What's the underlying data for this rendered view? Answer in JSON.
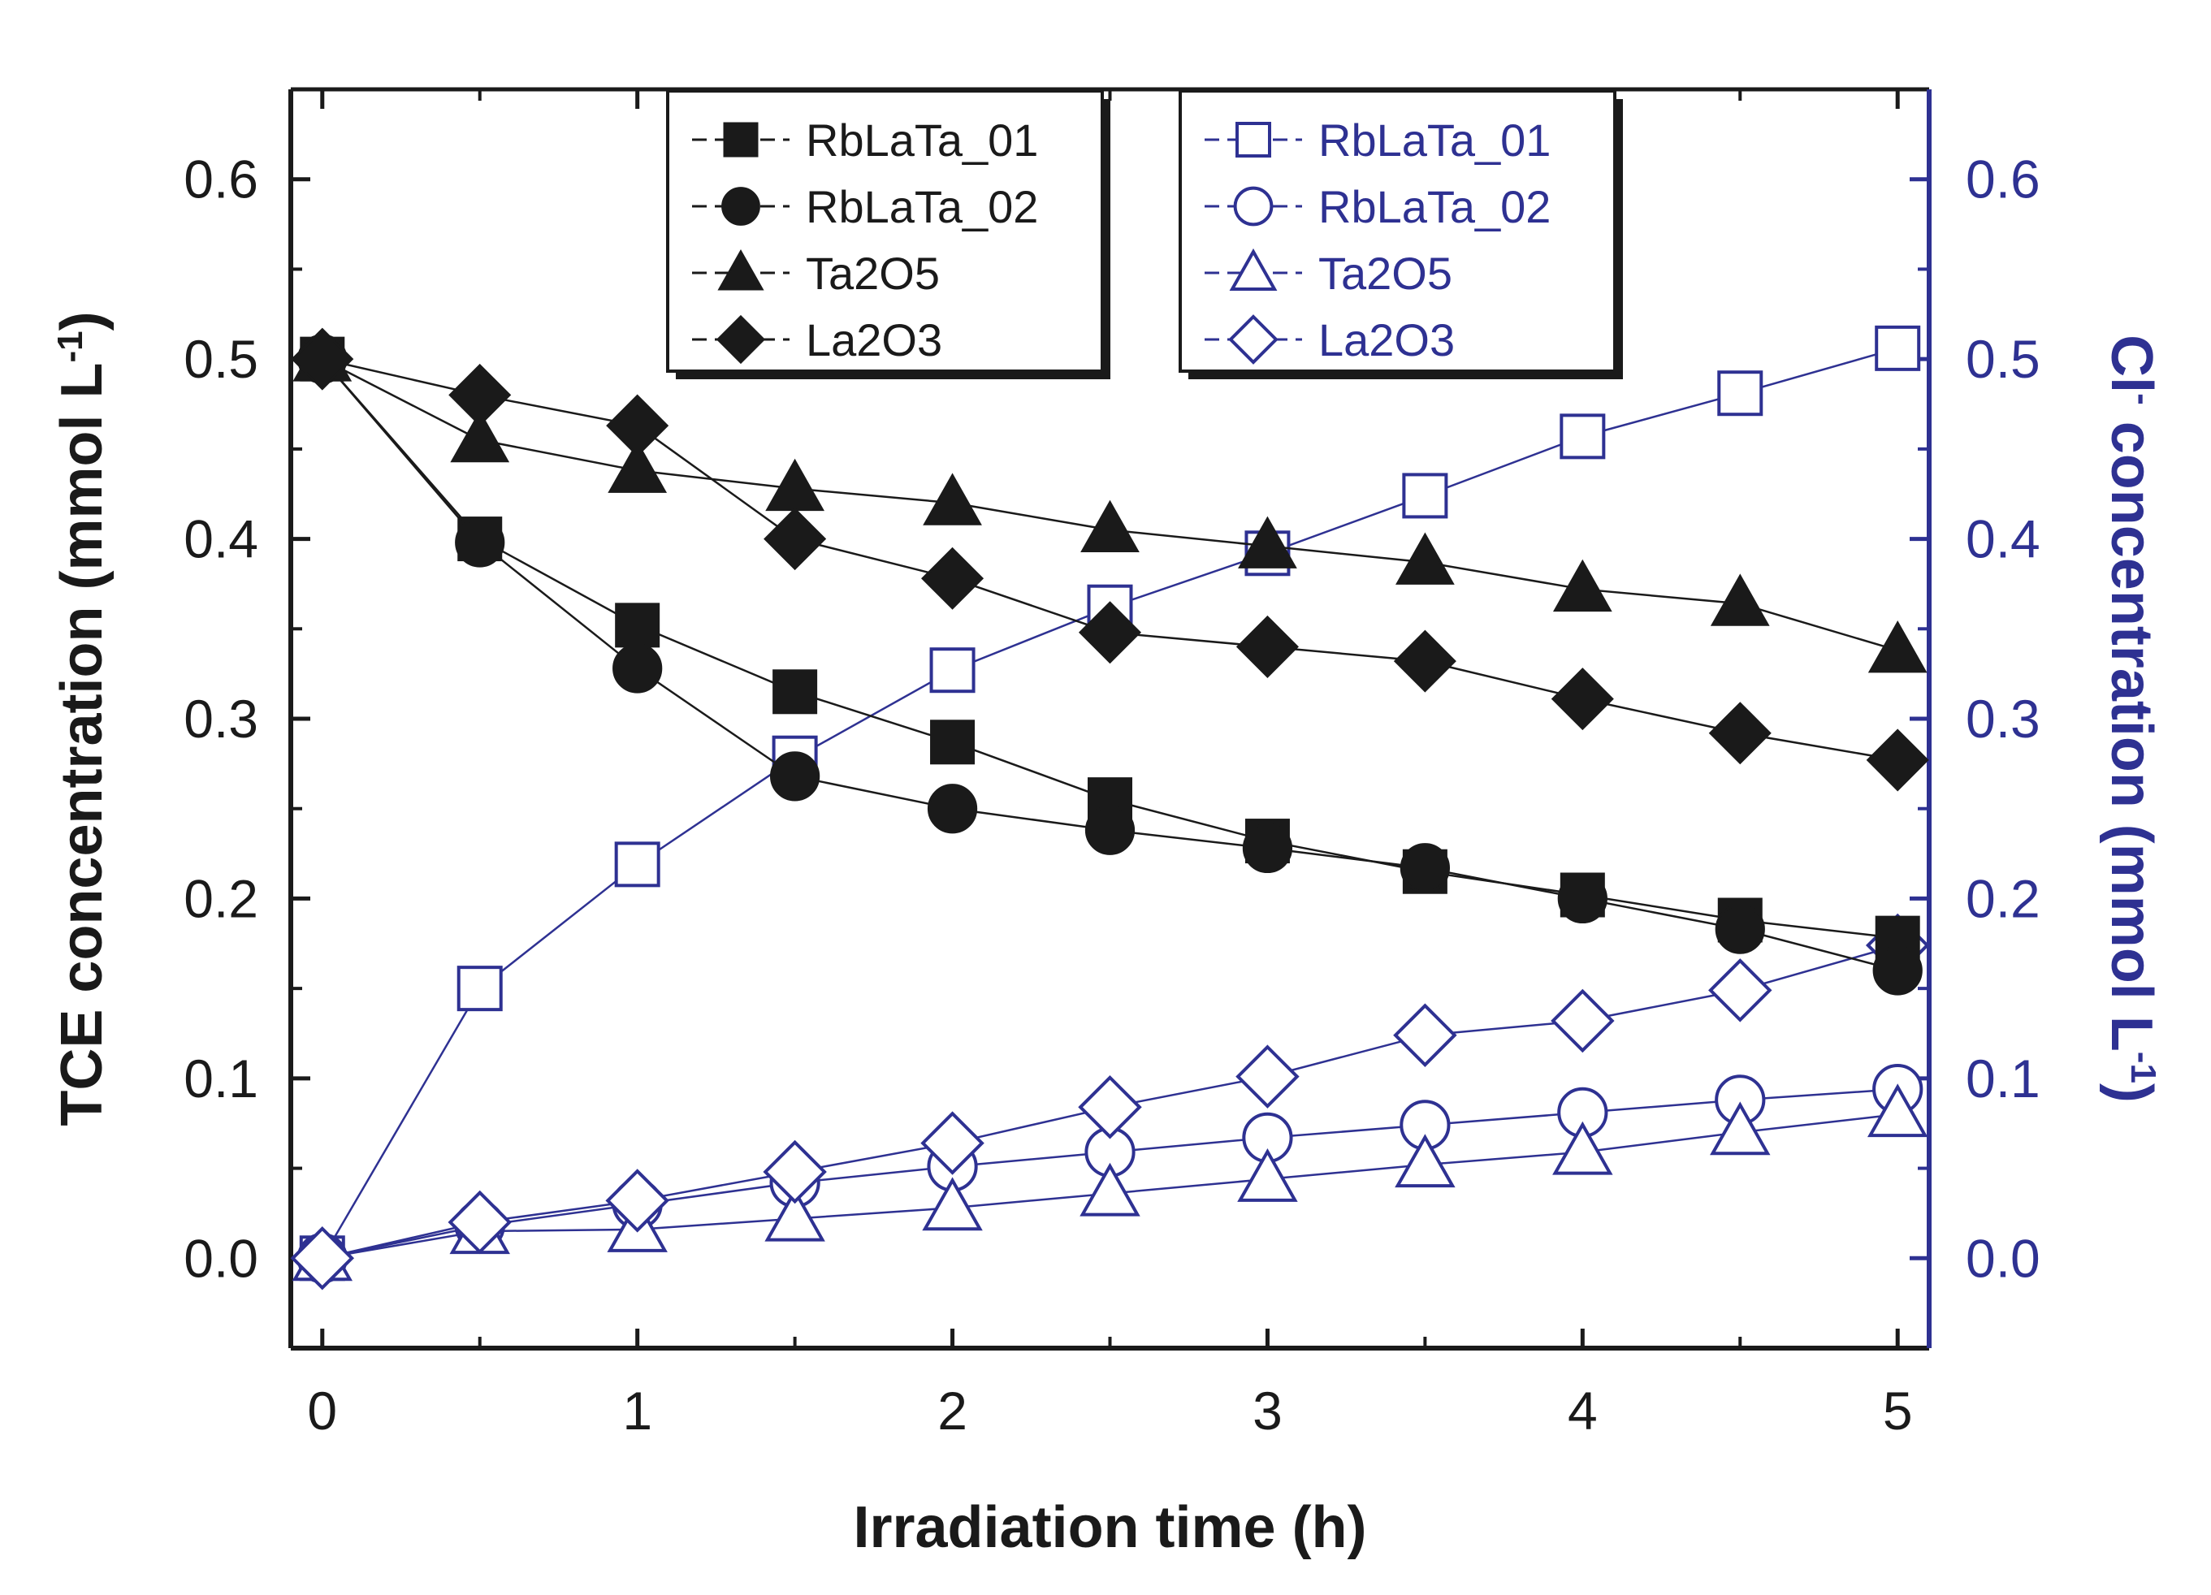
{
  "chart_data": {
    "type": "line",
    "x": [
      0,
      0.5,
      1,
      1.5,
      2,
      2.5,
      3,
      3.5,
      4,
      4.5,
      5
    ],
    "xlabel": "Irradiation time (h)",
    "xlim": [
      -0.1,
      5.1
    ],
    "xticks": [
      "0",
      "1",
      "2",
      "3",
      "4",
      "5"
    ],
    "left_axis": {
      "label_main": "TCE concentration (mmol L",
      "label_sup": "-1",
      "label_close": ")",
      "ylim": [
        -0.05,
        0.65
      ],
      "ticks": [
        "0.0",
        "0.1",
        "0.2",
        "0.3",
        "0.4",
        "0.5",
        "0.6"
      ],
      "color": "#1a1a1a"
    },
    "right_axis": {
      "label_main": "Cl",
      "label_sup1": "-",
      "label_mid": " concentration (mmol L",
      "label_sup2": "-1",
      "label_close": ")",
      "ylim": [
        -0.05,
        0.65
      ],
      "ticks": [
        "0.0",
        "0.1",
        "0.2",
        "0.3",
        "0.4",
        "0.5",
        "0.6"
      ],
      "color": "#2e3192"
    },
    "series_tce": [
      {
        "name": "RbLaTa_01",
        "marker": "square",
        "values": [
          0.5,
          0.4,
          0.352,
          0.315,
          0.287,
          0.255,
          0.232,
          0.215,
          0.202,
          0.188,
          0.178
        ]
      },
      {
        "name": "RbLaTa_02",
        "marker": "circle",
        "values": [
          0.5,
          0.398,
          0.328,
          0.268,
          0.25,
          0.238,
          0.228,
          0.217,
          0.2,
          0.183,
          0.16
        ]
      },
      {
        "name": "Ta2O5",
        "marker": "triangle",
        "values": [
          0.5,
          0.455,
          0.438,
          0.428,
          0.42,
          0.405,
          0.396,
          0.387,
          0.372,
          0.364,
          0.338
        ]
      },
      {
        "name": "La2O3",
        "marker": "diamond",
        "values": [
          0.5,
          0.48,
          0.463,
          0.4,
          0.378,
          0.348,
          0.34,
          0.332,
          0.311,
          0.292,
          0.277
        ]
      }
    ],
    "series_cl": [
      {
        "name": "RbLaTa_01",
        "marker": "square",
        "values": [
          0.0,
          0.15,
          0.219,
          0.278,
          0.327,
          0.362,
          0.392,
          0.424,
          0.457,
          0.481,
          0.506
        ]
      },
      {
        "name": "RbLaTa_02",
        "marker": "circle",
        "values": [
          0.0,
          0.018,
          0.03,
          0.042,
          0.051,
          0.059,
          0.067,
          0.074,
          0.081,
          0.088,
          0.094
        ]
      },
      {
        "name": "Ta2O5",
        "marker": "triangle",
        "values": [
          0.0,
          0.015,
          0.016,
          0.022,
          0.028,
          0.036,
          0.044,
          0.052,
          0.059,
          0.07,
          0.08
        ]
      },
      {
        "name": "La2O3",
        "marker": "diamond",
        "values": [
          0.0,
          0.02,
          0.032,
          0.048,
          0.064,
          0.084,
          0.101,
          0.124,
          0.132,
          0.149,
          0.174
        ]
      }
    ]
  }
}
